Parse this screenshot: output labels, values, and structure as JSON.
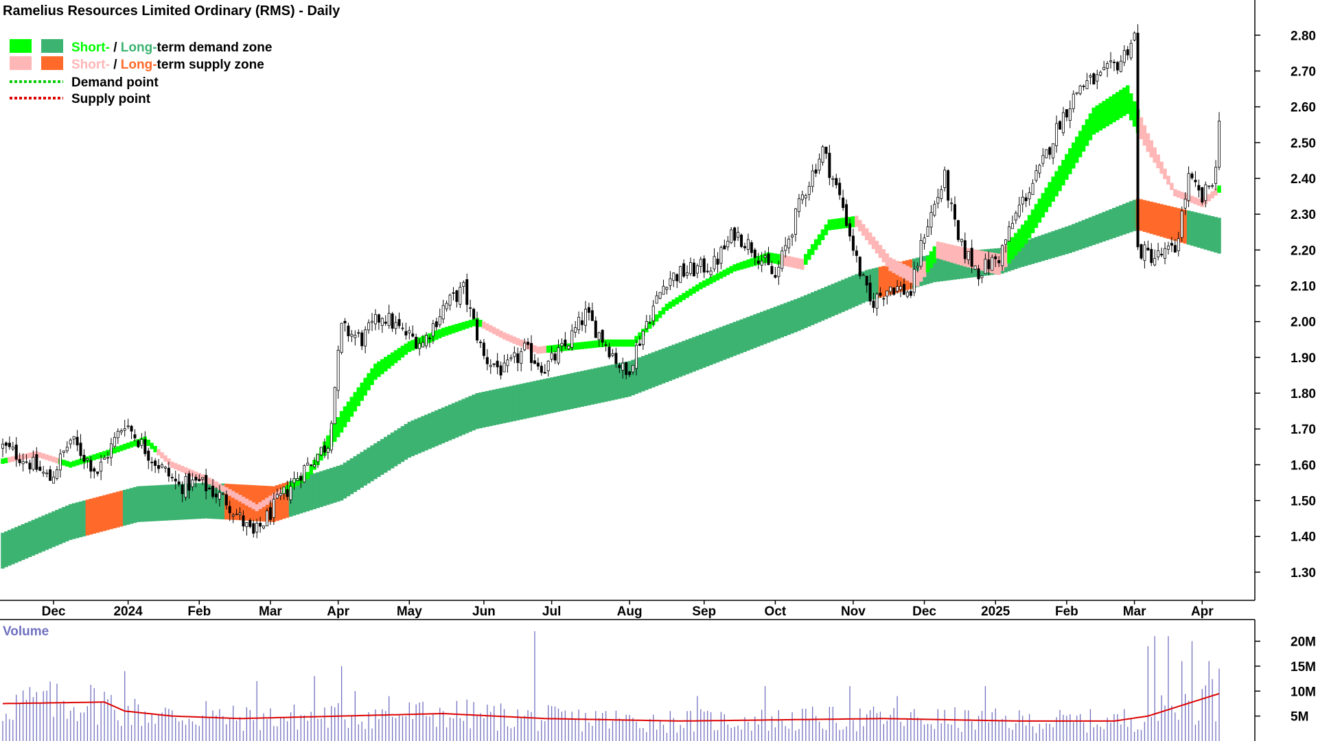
{
  "title": "Ramelius Resources Limited Ordinary (RMS) - Daily",
  "legend": {
    "demand_short": "Short-",
    "demand_sep": " / ",
    "demand_long": "Long-",
    "demand_rest": "term demand zone",
    "supply_short": "Short-",
    "supply_sep": " / ",
    "supply_long": "Long-",
    "supply_rest": "term supply zone",
    "demand_point": "Demand point",
    "supply_point": "Supply point"
  },
  "colors": {
    "short_demand": "#00ff00",
    "long_demand": "#3cb371",
    "short_supply": "#ffb6b6",
    "long_supply": "#ff6a2a",
    "demand_point": "#00cc00",
    "supply_point": "#dd0000",
    "candle": "#000000",
    "volume_bar": "#7070c0",
    "volume_avg": "#dd0000"
  },
  "volume_panel": {
    "label": "Volume",
    "ticks": [
      "20M",
      "15M",
      "10M",
      "5M"
    ],
    "tick_values": [
      20,
      15,
      10,
      5
    ]
  },
  "chart_data": {
    "type": "candlestick",
    "ylim": [
      1.25,
      2.86
    ],
    "y_ticks": [
      "2.80",
      "2.70",
      "2.60",
      "2.50",
      "2.40",
      "2.30",
      "2.20",
      "2.10",
      "2.00",
      "1.90",
      "1.80",
      "1.70",
      "1.60",
      "1.50",
      "1.40",
      "1.30"
    ],
    "y_tick_values": [
      2.8,
      2.7,
      2.6,
      2.5,
      2.4,
      2.3,
      2.2,
      2.1,
      2.0,
      1.9,
      1.8,
      1.7,
      1.6,
      1.5,
      1.4,
      1.3
    ],
    "x_tick_labels": [
      "Dec",
      "2024",
      "Feb",
      "Mar",
      "Apr",
      "May",
      "Jun",
      "Jul",
      "Aug",
      "Sep",
      "Oct",
      "Nov",
      "Dec",
      "2025",
      "Feb",
      "Mar",
      "Apr"
    ],
    "x_tick_index": [
      15,
      37,
      58,
      79,
      99,
      120,
      142,
      162,
      185,
      207,
      228,
      251,
      272,
      293,
      314,
      334,
      354
    ],
    "n_days": 360,
    "close_path": [
      [
        0,
        1.65
      ],
      [
        6,
        1.62
      ],
      [
        14,
        1.56
      ],
      [
        20,
        1.67
      ],
      [
        28,
        1.58
      ],
      [
        36,
        1.72
      ],
      [
        44,
        1.62
      ],
      [
        52,
        1.54
      ],
      [
        58,
        1.55
      ],
      [
        66,
        1.5
      ],
      [
        74,
        1.4
      ],
      [
        80,
        1.48
      ],
      [
        88,
        1.58
      ],
      [
        96,
        1.66
      ],
      [
        100,
        1.98
      ],
      [
        106,
        1.95
      ],
      [
        112,
        2.02
      ],
      [
        118,
        1.97
      ],
      [
        124,
        1.94
      ],
      [
        130,
        2.04
      ],
      [
        136,
        2.09
      ],
      [
        142,
        1.9
      ],
      [
        148,
        1.86
      ],
      [
        154,
        1.92
      ],
      [
        160,
        1.87
      ],
      [
        166,
        1.93
      ],
      [
        172,
        2.02
      ],
      [
        178,
        1.94
      ],
      [
        184,
        1.85
      ],
      [
        190,
        2.0
      ],
      [
        196,
        2.12
      ],
      [
        202,
        2.14
      ],
      [
        210,
        2.16
      ],
      [
        216,
        2.25
      ],
      [
        222,
        2.2
      ],
      [
        228,
        2.12
      ],
      [
        236,
        2.35
      ],
      [
        242,
        2.48
      ],
      [
        248,
        2.32
      ],
      [
        252,
        2.17
      ],
      [
        256,
        2.05
      ],
      [
        262,
        2.1
      ],
      [
        268,
        2.08
      ],
      [
        272,
        2.25
      ],
      [
        278,
        2.4
      ],
      [
        282,
        2.22
      ],
      [
        288,
        2.14
      ],
      [
        294,
        2.18
      ],
      [
        300,
        2.32
      ],
      [
        306,
        2.42
      ],
      [
        312,
        2.56
      ],
      [
        318,
        2.66
      ],
      [
        324,
        2.68
      ],
      [
        330,
        2.73
      ],
      [
        334,
        2.8
      ],
      [
        335,
        2.2
      ],
      [
        340,
        2.18
      ],
      [
        346,
        2.2
      ],
      [
        350,
        2.4
      ],
      [
        354,
        2.34
      ],
      [
        358,
        2.42
      ],
      [
        359,
        2.58
      ]
    ],
    "bands": {
      "long_mid": [
        [
          0,
          1.36
        ],
        [
          20,
          1.44
        ],
        [
          40,
          1.49
        ],
        [
          60,
          1.5
        ],
        [
          80,
          1.49
        ],
        [
          100,
          1.55
        ],
        [
          120,
          1.67
        ],
        [
          140,
          1.75
        ],
        [
          160,
          1.79
        ],
        [
          185,
          1.84
        ],
        [
          210,
          1.93
        ],
        [
          235,
          2.02
        ],
        [
          255,
          2.1
        ],
        [
          275,
          2.15
        ],
        [
          295,
          2.17
        ],
        [
          315,
          2.23
        ],
        [
          335,
          2.3
        ],
        [
          359,
          2.24
        ]
      ],
      "long_width": [
        [
          0,
          0.1
        ],
        [
          100,
          0.1
        ],
        [
          180,
          0.1
        ],
        [
          250,
          0.09
        ],
        [
          300,
          0.07
        ],
        [
          359,
          0.1
        ]
      ],
      "short_mid": [
        [
          0,
          1.61
        ],
        [
          10,
          1.63
        ],
        [
          20,
          1.6
        ],
        [
          30,
          1.63
        ],
        [
          42,
          1.67
        ],
        [
          50,
          1.6
        ],
        [
          60,
          1.56
        ],
        [
          75,
          1.48
        ],
        [
          90,
          1.57
        ],
        [
          100,
          1.72
        ],
        [
          110,
          1.86
        ],
        [
          120,
          1.93
        ],
        [
          130,
          1.97
        ],
        [
          140,
          2.0
        ],
        [
          148,
          1.96
        ],
        [
          158,
          1.92
        ],
        [
          168,
          1.93
        ],
        [
          178,
          1.94
        ],
        [
          186,
          1.94
        ],
        [
          196,
          2.04
        ],
        [
          206,
          2.1
        ],
        [
          216,
          2.15
        ],
        [
          226,
          2.18
        ],
        [
          236,
          2.16
        ],
        [
          244,
          2.27
        ],
        [
          252,
          2.28
        ],
        [
          262,
          2.16
        ],
        [
          270,
          2.12
        ],
        [
          276,
          2.2
        ],
        [
          284,
          2.18
        ],
        [
          294,
          2.16
        ],
        [
          302,
          2.25
        ],
        [
          312,
          2.4
        ],
        [
          322,
          2.56
        ],
        [
          332,
          2.62
        ],
        [
          338,
          2.5
        ],
        [
          346,
          2.36
        ],
        [
          354,
          2.33
        ],
        [
          359,
          2.37
        ]
      ],
      "short_width": [
        [
          0,
          0.015
        ],
        [
          90,
          0.02
        ],
        [
          100,
          0.06
        ],
        [
          120,
          0.03
        ],
        [
          140,
          0.02
        ],
        [
          196,
          0.02
        ],
        [
          216,
          0.02
        ],
        [
          230,
          0.03
        ],
        [
          250,
          0.03
        ],
        [
          310,
          0.07
        ],
        [
          332,
          0.08
        ],
        [
          345,
          0.02
        ],
        [
          359,
          0.02
        ]
      ],
      "long_supply_spans": [
        [
          25,
          35
        ],
        [
          66,
          84
        ],
        [
          259,
          268
        ],
        [
          335,
          349
        ]
      ],
      "short_supply_spans": [
        [
          2,
          16
        ],
        [
          46,
          82
        ],
        [
          142,
          160
        ],
        [
          230,
          236
        ],
        [
          252,
          272
        ],
        [
          276,
          296
        ],
        [
          336,
          358
        ]
      ]
    },
    "volume": {
      "unit": "M",
      "ylim": [
        0,
        22
      ],
      "avg_path": [
        [
          0,
          7.5
        ],
        [
          30,
          7.8
        ],
        [
          36,
          6.0
        ],
        [
          50,
          5.0
        ],
        [
          70,
          4.5
        ],
        [
          100,
          5.0
        ],
        [
          130,
          5.5
        ],
        [
          160,
          4.5
        ],
        [
          200,
          4.0
        ],
        [
          260,
          4.5
        ],
        [
          300,
          4.0
        ],
        [
          328,
          4.0
        ],
        [
          338,
          5.0
        ],
        [
          359,
          9.5
        ]
      ],
      "spikes": [
        [
          0,
          4
        ],
        [
          12,
          10
        ],
        [
          25,
          7
        ],
        [
          36,
          14
        ],
        [
          60,
          8
        ],
        [
          75,
          12
        ],
        [
          92,
          13
        ],
        [
          100,
          15
        ],
        [
          104,
          10
        ],
        [
          114,
          9
        ],
        [
          125,
          5
        ],
        [
          130,
          6
        ],
        [
          157,
          22
        ],
        [
          175,
          6
        ],
        [
          205,
          9
        ],
        [
          225,
          11
        ],
        [
          240,
          5
        ],
        [
          250,
          11
        ],
        [
          264,
          9
        ],
        [
          290,
          11
        ],
        [
          338,
          19
        ],
        [
          340,
          21
        ],
        [
          344,
          21
        ],
        [
          348,
          16
        ],
        [
          351,
          20
        ],
        [
          356,
          16
        ]
      ]
    }
  }
}
